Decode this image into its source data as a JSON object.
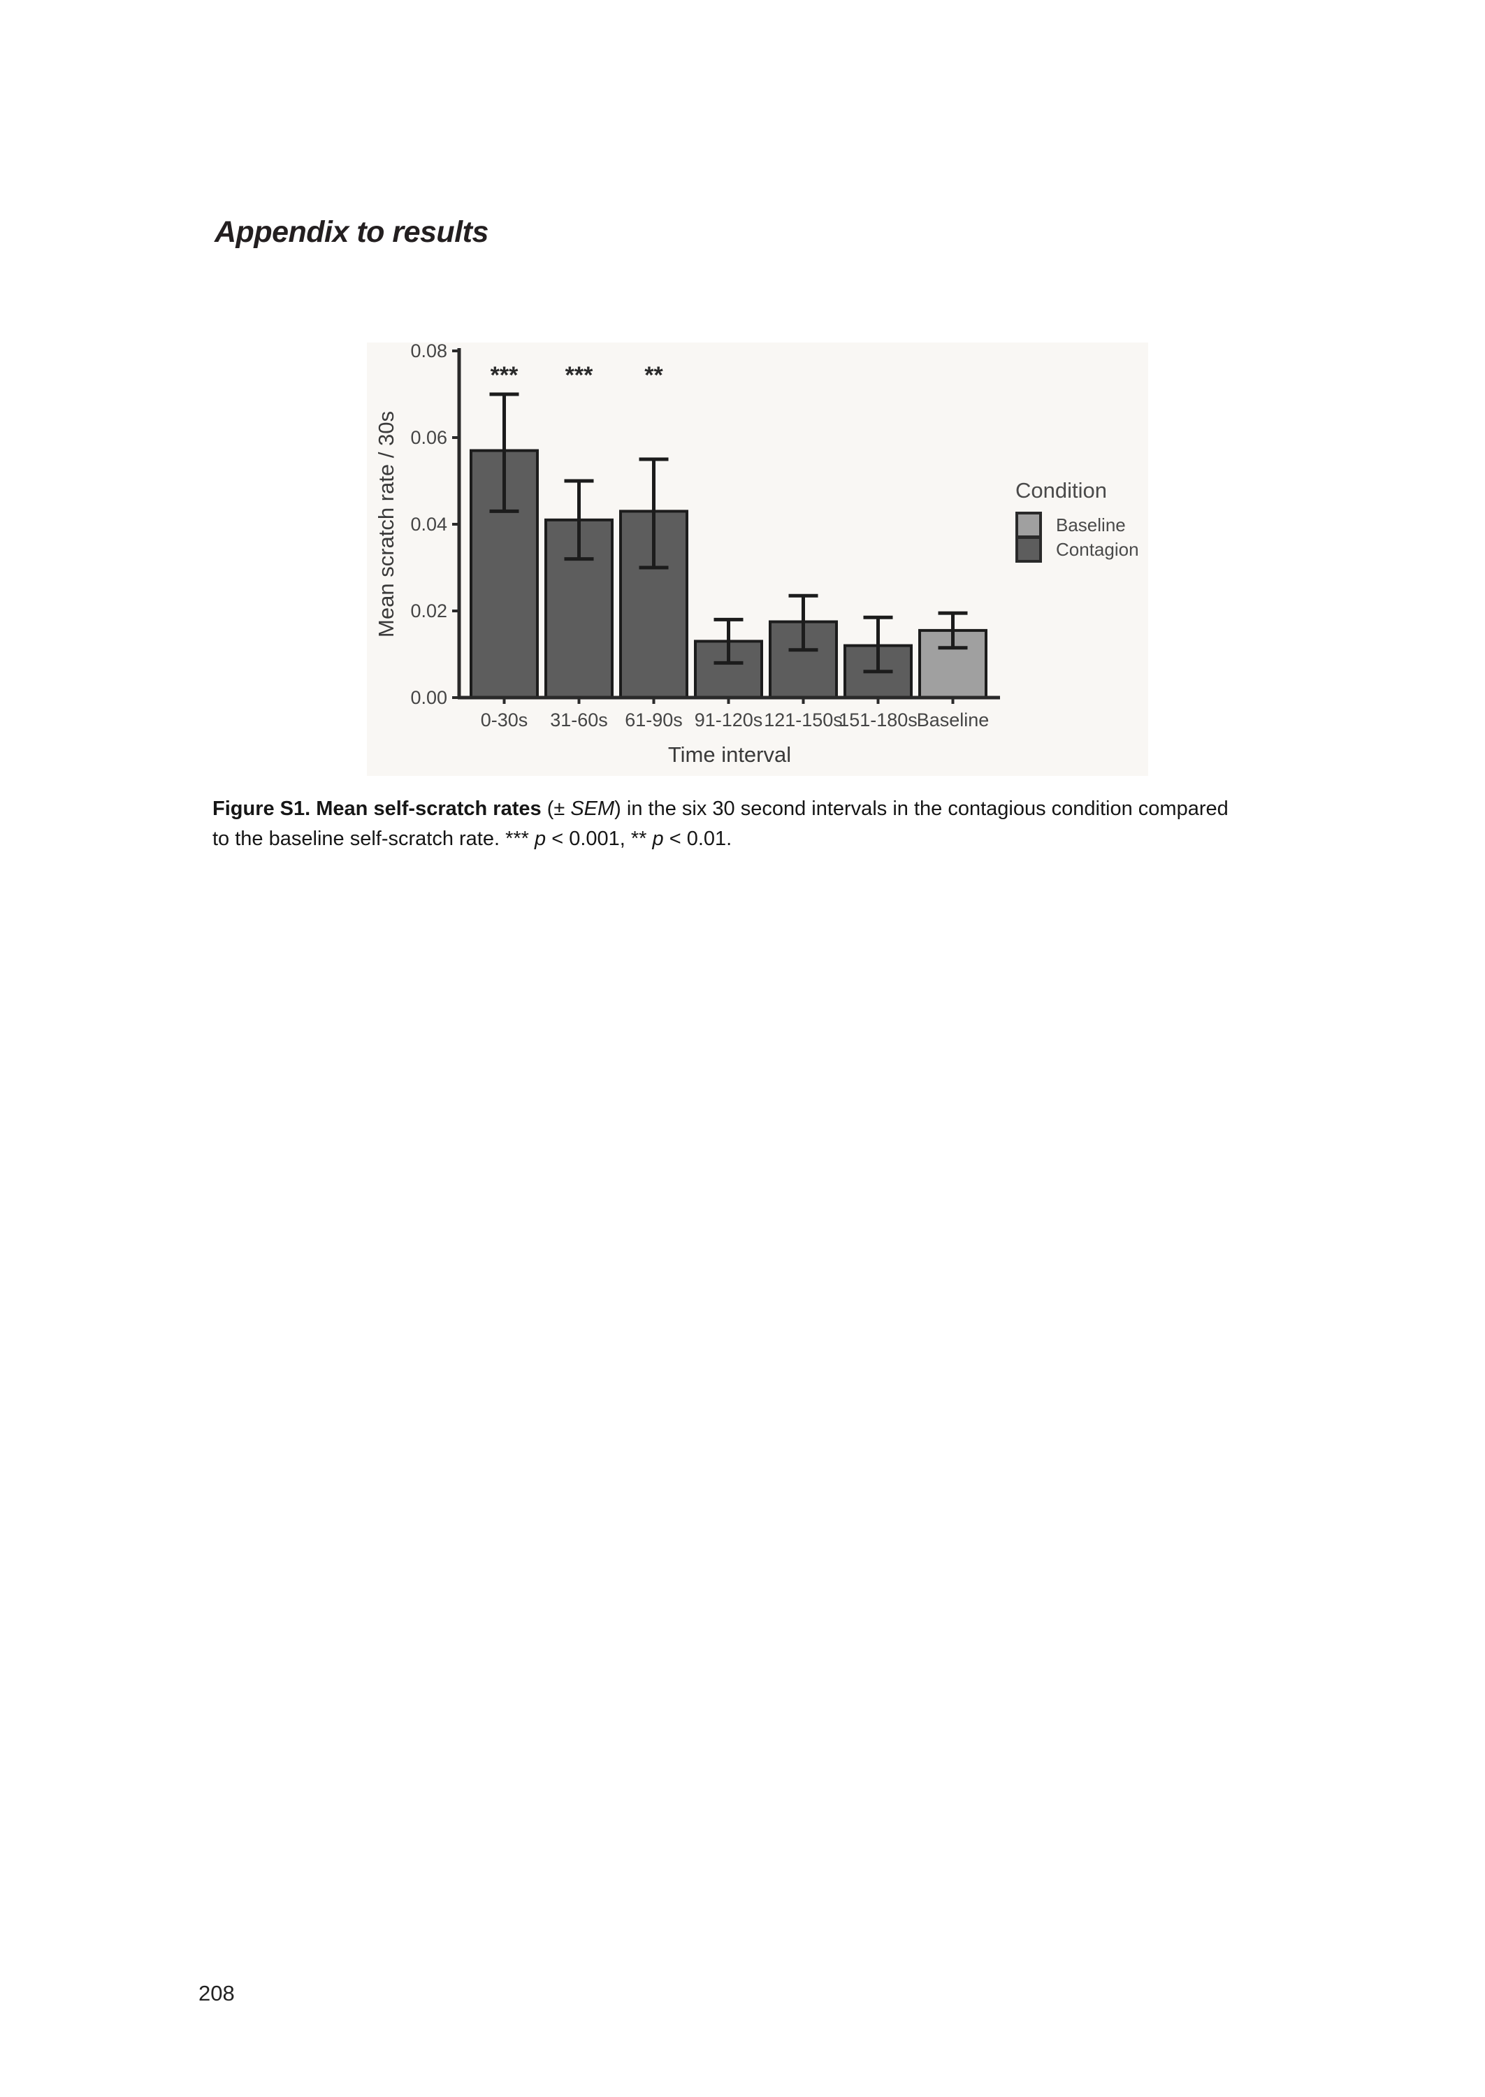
{
  "page": {
    "heading": "Appendix to results",
    "page_number": "208"
  },
  "figure": {
    "caption_line1": [
      {
        "t": "Figure S1. Mean self-scratch rates",
        "b": true
      },
      {
        "t": " (± "
      },
      {
        "t": "SEM",
        "i": true
      },
      {
        "t": ") in the six 30 second intervals in the contagious condition compared"
      }
    ],
    "caption_line2": [
      {
        "t": "to the baseline self-scratch rate. *** "
      },
      {
        "t": "p",
        "i": true
      },
      {
        "t": " < 0.001, ** "
      },
      {
        "t": "p",
        "i": true
      },
      {
        "t": " < 0.01."
      }
    ]
  },
  "chart_data": {
    "type": "bar",
    "title": "",
    "xlabel": "Time interval",
    "ylabel": "Mean scratch rate / 30s",
    "ylim": [
      0,
      0.08
    ],
    "yticks": [
      0,
      0.02,
      0.04,
      0.06,
      0.08
    ],
    "ytick_labels": [
      "0.00",
      "0.02",
      "0.04",
      "0.06",
      "0.08"
    ],
    "categories": [
      "0-30s",
      "31-60s",
      "61-90s",
      "91-120s",
      "121-150s",
      "151-180s",
      "Baseline"
    ],
    "values": [
      0.057,
      0.041,
      0.043,
      0.013,
      0.0175,
      0.012,
      0.0155
    ],
    "error_low": [
      0.043,
      0.032,
      0.03,
      0.008,
      0.011,
      0.006,
      0.0115
    ],
    "error_high": [
      0.07,
      0.05,
      0.055,
      0.018,
      0.0235,
      0.0185,
      0.0195
    ],
    "significance": [
      "***",
      "***",
      "**",
      "",
      "",
      "",
      ""
    ],
    "conditions": [
      "Contagion",
      "Contagion",
      "Contagion",
      "Contagion",
      "Contagion",
      "Contagion",
      "Baseline"
    ],
    "legend": {
      "title": "Condition",
      "items": [
        {
          "label": "Baseline",
          "color": "#a0a0a0"
        },
        {
          "label": "Contagion",
          "color": "#5d5d5d"
        }
      ],
      "position": "right"
    },
    "colors": {
      "contagion_bar": "#5d5d5d",
      "baseline_bar": "#a0a0a0",
      "stroke": "#1c1c1c",
      "axis": "#2a2a2a",
      "tick_text": "#454545",
      "plot_bg": "#f9f7f4"
    },
    "grid": false
  }
}
